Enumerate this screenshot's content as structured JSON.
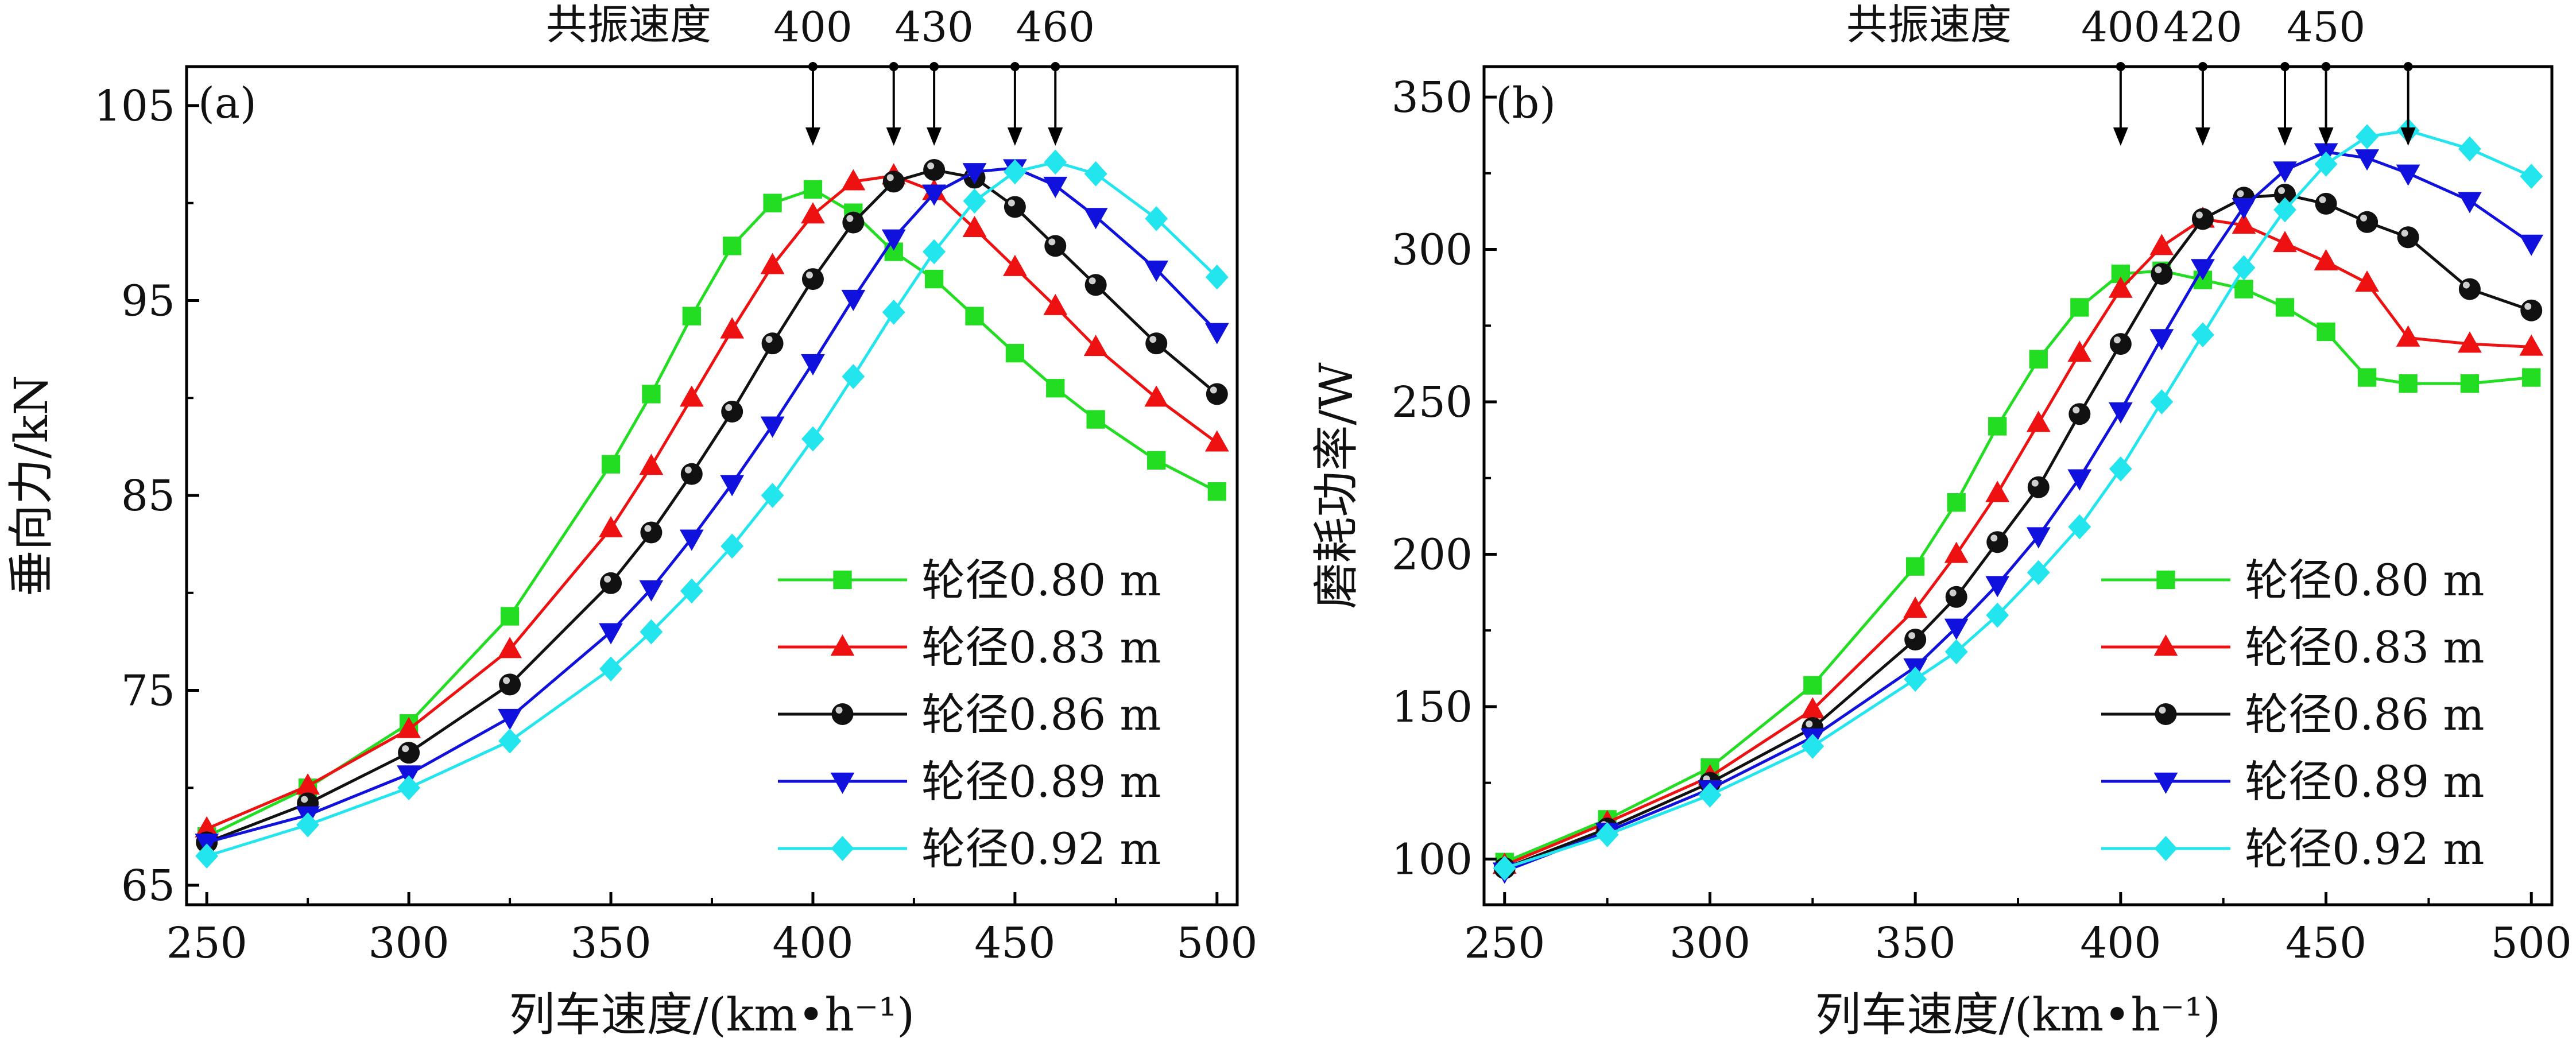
{
  "chart_data": [
    {
      "type": "line",
      "panel_label": "(a)",
      "xlabel": "列车速度/(km•h⁻¹)",
      "ylabel": "垂向力/kN",
      "xlim": [
        245,
        505
      ],
      "ylim": [
        64,
        107
      ],
      "xticks": [
        250,
        300,
        350,
        400,
        450,
        500
      ],
      "yticks": [
        65,
        75,
        85,
        95,
        105
      ],
      "resonance_title": "共振速度",
      "resonance_labels": [
        {
          "text": "400",
          "x": 400
        },
        {
          "text": "430",
          "x": 430
        },
        {
          "text": "460",
          "x": 460
        }
      ],
      "resonance_arrows": [
        400,
        420,
        430,
        450,
        460
      ],
      "legend_position": "bottom-right",
      "series": [
        {
          "name": "轮径0.80 m",
          "color": "#22dd22",
          "marker": "square",
          "x": [
            250,
            275,
            300,
            325,
            350,
            360,
            370,
            380,
            390,
            400,
            410,
            420,
            430,
            440,
            450,
            460,
            470,
            485,
            500
          ],
          "y": [
            67.5,
            70.0,
            73.3,
            78.8,
            86.6,
            90.2,
            94.2,
            97.8,
            100.0,
            100.7,
            99.5,
            97.5,
            96.1,
            94.2,
            92.3,
            90.5,
            88.9,
            86.8,
            85.2
          ]
        },
        {
          "name": "轮径0.83 m",
          "color": "#ee1111",
          "marker": "triangle-up",
          "x": [
            250,
            275,
            300,
            325,
            350,
            360,
            370,
            380,
            390,
            400,
            410,
            420,
            430,
            440,
            450,
            460,
            470,
            485,
            500
          ],
          "y": [
            67.9,
            70.1,
            73.0,
            77.1,
            83.3,
            86.5,
            90.0,
            93.5,
            96.8,
            99.4,
            101.1,
            101.4,
            100.6,
            98.7,
            96.7,
            94.7,
            92.6,
            90.0,
            87.7
          ]
        },
        {
          "name": "轮径0.86 m",
          "color": "#111111",
          "marker": "ball",
          "x": [
            250,
            275,
            300,
            325,
            350,
            360,
            370,
            380,
            390,
            400,
            410,
            420,
            430,
            440,
            450,
            460,
            470,
            485,
            500
          ],
          "y": [
            67.2,
            69.2,
            71.8,
            75.3,
            80.5,
            83.1,
            86.1,
            89.3,
            92.8,
            96.1,
            99.0,
            101.1,
            101.7,
            101.3,
            99.8,
            97.8,
            95.8,
            92.8,
            90.2
          ]
        },
        {
          "name": "轮径0.89 m",
          "color": "#1111dd",
          "marker": "triangle-down",
          "x": [
            250,
            275,
            300,
            325,
            350,
            360,
            370,
            380,
            390,
            400,
            410,
            420,
            430,
            440,
            450,
            460,
            470,
            485,
            500
          ],
          "y": [
            67.2,
            68.6,
            70.7,
            73.6,
            78.0,
            80.2,
            82.8,
            85.6,
            88.6,
            91.8,
            95.1,
            98.2,
            100.5,
            101.6,
            101.8,
            100.9,
            99.3,
            96.6,
            93.4
          ]
        },
        {
          "name": "轮径0.92 m",
          "color": "#22e5ee",
          "marker": "diamond",
          "x": [
            250,
            275,
            300,
            325,
            350,
            360,
            370,
            380,
            390,
            400,
            410,
            420,
            430,
            440,
            450,
            460,
            470,
            485,
            500
          ],
          "y": [
            66.5,
            68.1,
            70.0,
            72.4,
            76.1,
            78.0,
            80.1,
            82.4,
            85.0,
            87.9,
            91.1,
            94.4,
            97.5,
            100.1,
            101.6,
            102.1,
            101.5,
            99.2,
            96.2
          ]
        }
      ]
    },
    {
      "type": "line",
      "panel_label": "(b)",
      "xlabel": "列车速度/(km•h⁻¹)",
      "ylabel": "磨耗功率/W",
      "xlim": [
        245,
        505
      ],
      "ylim": [
        85,
        360
      ],
      "xticks": [
        250,
        300,
        350,
        400,
        450,
        500
      ],
      "yticks": [
        100,
        150,
        200,
        250,
        300,
        350
      ],
      "resonance_title": "共振速度",
      "resonance_labels": [
        {
          "text": "400",
          "x": 400
        },
        {
          "text": "420",
          "x": 420
        },
        {
          "text": "450",
          "x": 450
        }
      ],
      "resonance_arrows": [
        400,
        420,
        440,
        450,
        470
      ],
      "legend_position": "bottom-right",
      "series": [
        {
          "name": "轮径0.80 m",
          "color": "#22dd22",
          "marker": "square",
          "x": [
            250,
            275,
            300,
            325,
            350,
            360,
            370,
            380,
            390,
            400,
            410,
            420,
            430,
            440,
            450,
            460,
            470,
            485,
            500
          ],
          "y": [
            99,
            113,
            130,
            157,
            196,
            217,
            242,
            264,
            281,
            292,
            293,
            290,
            287,
            281,
            273,
            258,
            256,
            256,
            258
          ]
        },
        {
          "name": "轮径0.83 m",
          "color": "#ee1111",
          "marker": "triangle-up",
          "x": [
            250,
            275,
            300,
            325,
            350,
            360,
            370,
            380,
            390,
            400,
            410,
            420,
            430,
            440,
            450,
            460,
            470,
            485,
            500
          ],
          "y": [
            98,
            112,
            127,
            149,
            182,
            200,
            220,
            243,
            266,
            287,
            301,
            310,
            308,
            302,
            296,
            289,
            271,
            269,
            268
          ]
        },
        {
          "name": "轮径0.86 m",
          "color": "#111111",
          "marker": "ball",
          "x": [
            250,
            275,
            300,
            325,
            350,
            360,
            370,
            380,
            390,
            400,
            410,
            420,
            430,
            440,
            450,
            460,
            470,
            485,
            500
          ],
          "y": [
            97,
            110,
            125,
            143,
            172,
            186,
            204,
            222,
            246,
            269,
            292,
            310,
            317,
            318,
            315,
            309,
            304,
            287,
            280
          ]
        },
        {
          "name": "轮径0.89 m",
          "color": "#1111dd",
          "marker": "triangle-down",
          "x": [
            250,
            275,
            300,
            325,
            350,
            360,
            370,
            380,
            390,
            400,
            410,
            420,
            430,
            440,
            450,
            460,
            470,
            485,
            500
          ],
          "y": [
            96,
            109,
            123,
            140,
            163,
            176,
            190,
            206,
            225,
            247,
            271,
            294,
            314,
            326,
            332,
            330,
            325,
            316,
            302
          ]
        },
        {
          "name": "轮径0.92 m",
          "color": "#22e5ee",
          "marker": "diamond",
          "x": [
            250,
            275,
            300,
            325,
            350,
            360,
            370,
            380,
            390,
            400,
            410,
            420,
            430,
            440,
            450,
            460,
            470,
            485,
            500
          ],
          "y": [
            97,
            108,
            121,
            137,
            159,
            168,
            180,
            194,
            209,
            228,
            250,
            272,
            294,
            313,
            328,
            337,
            339,
            333,
            324
          ]
        }
      ]
    }
  ]
}
